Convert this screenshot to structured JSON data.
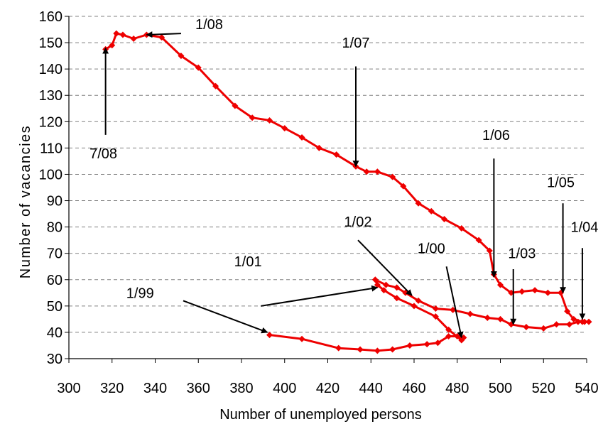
{
  "chart_data": {
    "type": "scatter",
    "xlabel": "Number of unemployed persons",
    "ylabel": "Number of vacancies",
    "xlim": [
      300,
      540
    ],
    "ylim": [
      30,
      160
    ],
    "xticks": [
      300,
      320,
      340,
      360,
      380,
      400,
      420,
      440,
      460,
      480,
      500,
      520,
      540
    ],
    "yticks": [
      30,
      40,
      50,
      60,
      70,
      80,
      90,
      100,
      110,
      120,
      130,
      140,
      150,
      160
    ],
    "grid": true,
    "grid_style": "dashed-horizontal",
    "legend": "none",
    "series": [
      {
        "color": "#ee0000",
        "marker": "diamond",
        "points": [
          [
            393,
            39
          ],
          [
            408,
            37.5
          ],
          [
            425,
            34
          ],
          [
            435,
            33.5
          ],
          [
            443,
            33
          ],
          [
            450,
            33.5
          ],
          [
            458,
            35
          ],
          [
            466,
            35.5
          ],
          [
            471,
            36
          ],
          [
            476,
            38.5
          ],
          [
            480,
            38.5
          ],
          [
            483,
            38
          ],
          [
            482,
            37
          ],
          [
            476,
            41
          ],
          [
            470,
            46
          ],
          [
            460,
            50
          ],
          [
            452,
            53
          ],
          [
            446,
            56
          ],
          [
            443,
            58
          ],
          [
            442,
            60
          ],
          [
            447,
            58
          ],
          [
            452,
            57
          ],
          [
            456,
            55
          ],
          [
            462,
            52
          ],
          [
            470,
            49
          ],
          [
            478,
            48.5
          ],
          [
            486,
            47
          ],
          [
            494,
            45.5
          ],
          [
            500,
            45
          ],
          [
            505,
            43
          ],
          [
            512,
            42
          ],
          [
            520,
            41.5
          ],
          [
            526,
            43
          ],
          [
            532,
            43
          ],
          [
            536,
            44
          ],
          [
            539,
            44
          ],
          [
            541,
            44
          ],
          [
            538,
            44
          ],
          [
            534,
            45
          ],
          [
            531,
            48
          ],
          [
            528,
            55
          ],
          [
            522,
            55
          ],
          [
            516,
            56
          ],
          [
            510,
            55.5
          ],
          [
            505,
            55
          ],
          [
            500,
            58
          ],
          [
            497,
            62
          ],
          [
            495,
            71
          ],
          [
            490,
            75
          ],
          [
            482,
            79.5
          ],
          [
            474,
            83
          ],
          [
            468,
            86
          ],
          [
            462,
            89
          ],
          [
            455,
            95.5
          ],
          [
            450,
            99
          ],
          [
            443,
            101
          ],
          [
            438,
            101
          ],
          [
            433,
            103
          ],
          [
            424,
            107.5
          ],
          [
            416,
            110
          ],
          [
            408,
            114
          ],
          [
            400,
            117.5
          ],
          [
            393,
            120.5
          ],
          [
            385,
            121.5
          ],
          [
            377,
            126
          ],
          [
            368,
            133.5
          ],
          [
            360,
            140.5
          ],
          [
            352,
            145
          ],
          [
            343,
            152
          ],
          [
            336,
            153
          ],
          [
            330,
            151.5
          ],
          [
            325,
            153
          ],
          [
            322,
            153.5
          ],
          [
            320,
            149
          ],
          [
            317,
            147.5
          ]
        ]
      }
    ],
    "annotations": [
      {
        "text": "1/08",
        "point": [
          336,
          153
        ],
        "arrow_from": [
          352,
          153.5
        ],
        "label_at": [
          365,
          157
        ]
      },
      {
        "text": "7/08",
        "point": [
          317,
          148
        ],
        "arrow_from": [
          317,
          115
        ],
        "label_at": [
          316,
          108
        ]
      },
      {
        "text": "1/07",
        "point": [
          433,
          103
        ],
        "arrow_from": [
          433,
          141
        ],
        "label_at": [
          433,
          150
        ]
      },
      {
        "text": "1/06",
        "point": [
          497,
          61
        ],
        "arrow_from": [
          497,
          106
        ],
        "label_at": [
          498,
          115
        ]
      },
      {
        "text": "1/05",
        "point": [
          529,
          55
        ],
        "arrow_from": [
          529,
          89
        ],
        "label_at": [
          528,
          97
        ]
      },
      {
        "text": "1/04",
        "point": [
          538,
          45
        ],
        "arrow_from": [
          538,
          72
        ],
        "label_at": [
          539,
          80
        ]
      },
      {
        "text": "1/03",
        "point": [
          506,
          43
        ],
        "arrow_from": [
          506,
          64
        ],
        "label_at": [
          510,
          70
        ]
      },
      {
        "text": "1/02",
        "point": [
          459,
          54
        ],
        "arrow_from": [
          434,
          75
        ],
        "label_at": [
          434,
          82
        ]
      },
      {
        "text": "1/01",
        "point": [
          443,
          57
        ],
        "arrow_from": [
          389,
          50
        ],
        "label_at": [
          383,
          67
        ]
      },
      {
        "text": "1/00",
        "point": [
          482,
          38
        ],
        "arrow_from": [
          475,
          65
        ],
        "label_at": [
          468,
          72
        ]
      },
      {
        "text": "1/99",
        "point": [
          392,
          40
        ],
        "arrow_from": [
          353,
          52
        ],
        "label_at": [
          333,
          55
        ]
      }
    ]
  }
}
